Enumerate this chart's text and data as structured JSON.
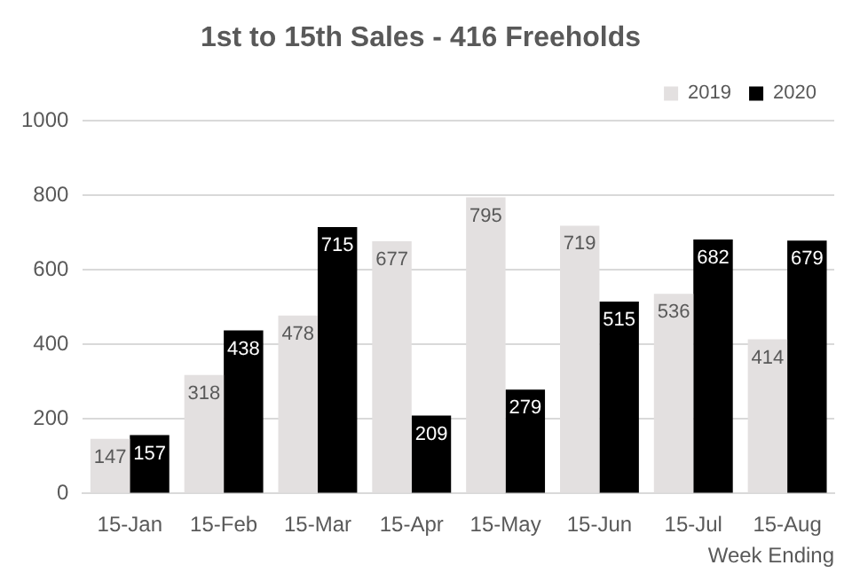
{
  "chart_data": {
    "type": "bar",
    "title": "1st to 15th Sales - 416 Freeholds",
    "xlabel": "Week Ending",
    "categories": [
      "15-Jan",
      "15-Feb",
      "15-Mar",
      "15-Apr",
      "15-May",
      "15-Jun",
      "15-Jul",
      "15-Aug"
    ],
    "series": [
      {
        "name": "2019",
        "color": "#e3e0e0",
        "values": [
          147,
          318,
          478,
          677,
          795,
          719,
          536,
          414
        ]
      },
      {
        "name": "2020",
        "color": "#000000",
        "values": [
          157,
          438,
          715,
          209,
          279,
          515,
          682,
          679
        ]
      }
    ],
    "ylim": [
      0,
      1000
    ],
    "yticks": [
      0,
      200,
      400,
      600,
      800,
      1000
    ],
    "grid": "y",
    "legend": "top right",
    "data_labels": true
  }
}
